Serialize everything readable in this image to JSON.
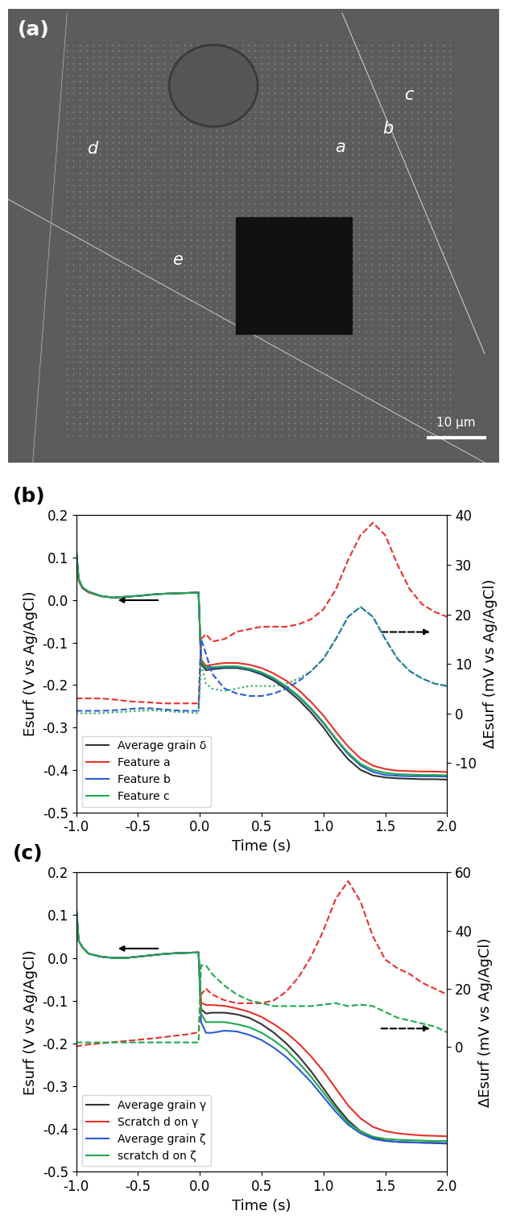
{
  "chart_data": [
    {
      "type": "image",
      "title": "(a)",
      "annotations": [
        "a",
        "b",
        "c",
        "d",
        "e"
      ],
      "scale_bar": "10 μm"
    },
    {
      "type": "line",
      "title": "(b)",
      "x_label": "Time (s)",
      "y_label": "Esurf (V vs Ag/AgCl)",
      "y2_label": "ΔEsurf (mV vs Ag/AgCl)",
      "x": [
        -1.0,
        -0.98,
        -0.95,
        -0.9,
        -0.8,
        -0.7,
        -0.6,
        -0.5,
        -0.4,
        -0.3,
        -0.2,
        -0.1,
        -0.01,
        0.01,
        0.05,
        0.1,
        0.2,
        0.3,
        0.4,
        0.5,
        0.6,
        0.7,
        0.8,
        0.9,
        1.0,
        1.1,
        1.2,
        1.3,
        1.4,
        1.5,
        1.6,
        1.7,
        1.8,
        1.9,
        2.0
      ],
      "xlim": [
        -1.0,
        2.0
      ],
      "xticks": [
        {
          "value": -1.0,
          "label": "-1.0"
        },
        -0.5,
        {
          "value": 0.0,
          "label": "0.0"
        },
        0.5,
        {
          "value": 1.0,
          "label": "1.0"
        },
        1.5,
        {
          "value": 2.0,
          "label": "2.0"
        }
      ],
      "ylim": [
        -0.5,
        0.2
      ],
      "yticks": [
        -0.5,
        -0.4,
        -0.3,
        -0.2,
        -0.1,
        {
          "value": 0.0,
          "label": "0.0"
        },
        0.1,
        0.2
      ],
      "y2lim": [
        -20,
        40
      ],
      "y2ticks": [
        -10,
        0,
        10,
        20,
        30,
        40
      ],
      "legend": "lower left",
      "series": [
        {
          "name": "Average grain δ",
          "color": "#333333",
          "line_style": "solid",
          "values": [
            0.12,
            0.05,
            0.03,
            0.02,
            0.01,
            0.006,
            0.008,
            0.01,
            0.013,
            0.015,
            0.016,
            0.017,
            0.018,
            -0.15,
            -0.165,
            -0.163,
            -0.16,
            -0.16,
            -0.165,
            -0.175,
            -0.19,
            -0.21,
            -0.235,
            -0.265,
            -0.3,
            -0.34,
            -0.375,
            -0.4,
            -0.413,
            -0.418,
            -0.42,
            -0.421,
            -0.422,
            -0.422,
            -0.423
          ]
        },
        {
          "name": "Feature a",
          "color": "#e8302a",
          "line_style": "solid",
          "values": [
            0.11,
            0.045,
            0.028,
            0.018,
            0.009,
            0.006,
            0.008,
            0.01,
            0.013,
            0.015,
            0.016,
            0.017,
            0.018,
            -0.14,
            -0.155,
            -0.152,
            -0.148,
            -0.148,
            -0.152,
            -0.16,
            -0.173,
            -0.19,
            -0.212,
            -0.24,
            -0.272,
            -0.31,
            -0.345,
            -0.373,
            -0.39,
            -0.398,
            -0.402,
            -0.403,
            -0.404,
            -0.404,
            -0.405
          ]
        },
        {
          "name": "Feature b",
          "color": "#2a5cd6",
          "line_style": "solid",
          "values": [
            0.12,
            0.05,
            0.03,
            0.02,
            0.01,
            0.006,
            0.008,
            0.01,
            0.013,
            0.015,
            0.016,
            0.017,
            0.018,
            -0.145,
            -0.16,
            -0.16,
            -0.158,
            -0.158,
            -0.163,
            -0.172,
            -0.186,
            -0.205,
            -0.228,
            -0.257,
            -0.29,
            -0.328,
            -0.363,
            -0.39,
            -0.405,
            -0.412,
            -0.414,
            -0.415,
            -0.415,
            -0.415,
            -0.416
          ]
        },
        {
          "name": "Feature c",
          "color": "#1fa84f",
          "line_style": "solid",
          "values": [
            0.12,
            0.05,
            0.03,
            0.02,
            0.01,
            0.006,
            0.008,
            0.01,
            0.013,
            0.015,
            0.016,
            0.017,
            0.018,
            -0.145,
            -0.158,
            -0.158,
            -0.156,
            -0.156,
            -0.161,
            -0.17,
            -0.184,
            -0.203,
            -0.226,
            -0.255,
            -0.288,
            -0.326,
            -0.36,
            -0.386,
            -0.4,
            -0.407,
            -0.41,
            -0.411,
            -0.412,
            -0.412,
            -0.413
          ]
        },
        {
          "color": "#e8302a",
          "line_style": "dashed",
          "axis": "y2",
          "values": [
            3,
            3,
            3,
            3,
            3,
            2.8,
            2.5,
            2.3,
            2.2,
            2,
            2,
            2,
            2,
            15,
            16,
            14.5,
            15,
            16.5,
            17,
            17.5,
            17.5,
            17.5,
            18,
            19,
            21,
            25,
            31,
            36,
            38.5,
            36,
            30,
            25,
            22,
            20.5,
            19.5
          ]
        },
        {
          "color": "#2a5cd6",
          "line_style": "dashed",
          "axis": "y2",
          "values": [
            0.5,
            0.5,
            0.5,
            0.5,
            0.5,
            0.6,
            0.8,
            1,
            1,
            0.8,
            0.6,
            0.5,
            0.5,
            15,
            12,
            8,
            5,
            4,
            3.5,
            3.5,
            4,
            5,
            6.5,
            8.5,
            11,
            15,
            19.5,
            21.5,
            19.5,
            15,
            11,
            8.5,
            7,
            6,
            5.5
          ]
        },
        {
          "color": "#1fa84f",
          "line_style": "dotted",
          "axis": "y2",
          "values": [
            0,
            0,
            0,
            0,
            0,
            0.2,
            0.3,
            0.5,
            0.6,
            0.5,
            0.3,
            0.2,
            0,
            10,
            6,
            5,
            4.5,
            5,
            5.5,
            5.5,
            5.5,
            6,
            7,
            8.5,
            11,
            15,
            19.5,
            21.5,
            19.5,
            15,
            11,
            8.5,
            7,
            6,
            5.5
          ]
        }
      ]
    },
    {
      "type": "line",
      "title": "(c)",
      "x_label": "Time (s)",
      "y_label": "Esurf (V vs Ag/AgCl)",
      "y2_label": "ΔEsurf (mV vs Ag/AgCl)",
      "x": [
        -1.0,
        -0.98,
        -0.95,
        -0.9,
        -0.8,
        -0.7,
        -0.6,
        -0.5,
        -0.4,
        -0.3,
        -0.2,
        -0.1,
        -0.01,
        0.01,
        0.05,
        0.1,
        0.2,
        0.3,
        0.4,
        0.5,
        0.6,
        0.7,
        0.8,
        0.9,
        1.0,
        1.1,
        1.2,
        1.3,
        1.4,
        1.5,
        1.6,
        1.7,
        1.8,
        1.9,
        2.0
      ],
      "xlim": [
        -1.0,
        2.0
      ],
      "xticks": [
        {
          "value": -1.0,
          "label": "-1.0"
        },
        -0.5,
        {
          "value": 0.0,
          "label": "0.0"
        },
        0.5,
        {
          "value": 1.0,
          "label": "1.0"
        },
        1.5,
        {
          "value": 2.0,
          "label": "2.0"
        }
      ],
      "ylim": [
        -0.5,
        0.2
      ],
      "yticks": [
        -0.5,
        -0.4,
        -0.3,
        -0.2,
        -0.1,
        {
          "value": 0.0,
          "label": "0.0"
        },
        0.1,
        0.2
      ],
      "y2lim": [
        -43,
        60
      ],
      "y2ticks": [
        0,
        20,
        40,
        60
      ],
      "legend": "lower left",
      "series": [
        {
          "name": "Average grain γ",
          "color": "#333333",
          "line_style": "solid",
          "values": [
            0.12,
            0.04,
            0.025,
            0.01,
            0.003,
            0.0,
            0.0,
            0.003,
            0.006,
            0.009,
            0.011,
            0.012,
            0.013,
            -0.12,
            -0.13,
            -0.128,
            -0.128,
            -0.132,
            -0.14,
            -0.155,
            -0.175,
            -0.2,
            -0.23,
            -0.265,
            -0.305,
            -0.345,
            -0.38,
            -0.405,
            -0.42,
            -0.427,
            -0.43,
            -0.431,
            -0.432,
            -0.433,
            -0.434
          ]
        },
        {
          "name": "Scratch d on γ",
          "color": "#e8302a",
          "line_style": "solid",
          "values": [
            0.12,
            0.04,
            0.025,
            0.01,
            0.003,
            0.0,
            0.0,
            0.003,
            0.006,
            0.009,
            0.011,
            0.012,
            0.013,
            -0.105,
            -0.11,
            -0.11,
            -0.112,
            -0.118,
            -0.126,
            -0.138,
            -0.155,
            -0.175,
            -0.2,
            -0.23,
            -0.265,
            -0.305,
            -0.345,
            -0.375,
            -0.395,
            -0.405,
            -0.41,
            -0.413,
            -0.415,
            -0.416,
            -0.417
          ]
        },
        {
          "name": "Average grain ζ",
          "color": "#2a5cd6",
          "line_style": "solid",
          "values": [
            0.12,
            0.04,
            0.025,
            0.01,
            0.003,
            0.0,
            0.0,
            0.003,
            0.006,
            0.009,
            0.011,
            0.012,
            0.013,
            -0.15,
            -0.175,
            -0.175,
            -0.17,
            -0.172,
            -0.18,
            -0.192,
            -0.21,
            -0.232,
            -0.26,
            -0.29,
            -0.325,
            -0.36,
            -0.39,
            -0.41,
            -0.423,
            -0.428,
            -0.43,
            -0.431,
            -0.432,
            -0.432,
            -0.433
          ]
        },
        {
          "name": "scratch d on ζ",
          "color": "#1fa84f",
          "line_style": "solid",
          "values": [
            0.12,
            0.04,
            0.025,
            0.01,
            0.003,
            0.0,
            0.0,
            0.003,
            0.006,
            0.009,
            0.011,
            0.012,
            0.013,
            -0.13,
            -0.15,
            -0.15,
            -0.15,
            -0.155,
            -0.162,
            -0.175,
            -0.193,
            -0.215,
            -0.245,
            -0.278,
            -0.315,
            -0.352,
            -0.385,
            -0.405,
            -0.418,
            -0.423,
            -0.425,
            -0.426,
            -0.427,
            -0.428,
            -0.428
          ]
        },
        {
          "color": "#e8302a",
          "line_style": "dashed",
          "axis": "y2",
          "values": [
            0,
            0.3,
            0.5,
            0.8,
            1.2,
            1.6,
            2,
            2.4,
            2.8,
            3.3,
            3.8,
            4.3,
            5,
            18,
            20,
            18,
            16,
            15,
            15,
            15,
            16,
            19,
            24,
            31,
            40,
            51,
            57,
            50,
            38,
            30,
            27,
            25,
            22,
            20,
            18
          ]
        },
        {
          "color": "#1fa84f",
          "line_style": "dashed",
          "axis": "y2",
          "values": [
            1.5,
            1.5,
            1.5,
            1.5,
            1.5,
            1.5,
            1.5,
            1.5,
            1.5,
            1.5,
            1.5,
            1.5,
            1.5,
            28,
            28,
            25,
            21,
            18,
            16,
            15,
            14,
            14,
            14,
            14,
            14.5,
            15,
            14,
            14.5,
            14,
            12,
            10,
            9,
            8,
            7,
            5
          ]
        }
      ]
    }
  ]
}
